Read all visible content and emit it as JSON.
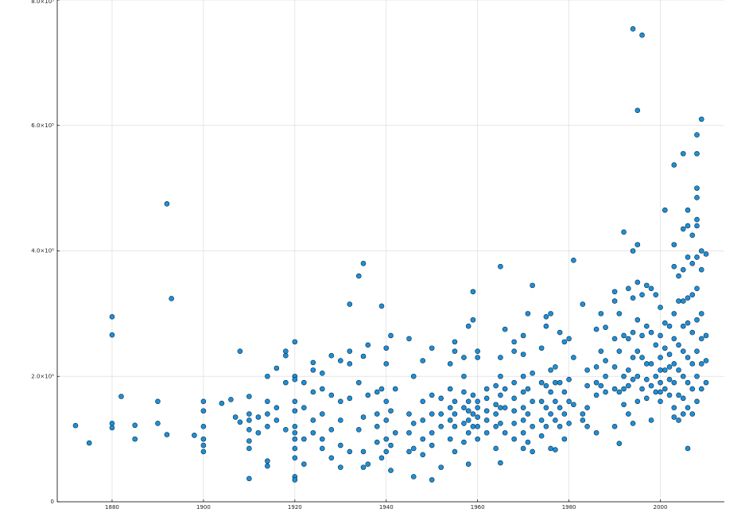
{
  "chart_data": {
    "type": "scatter",
    "x": [
      1872,
      1875,
      1880,
      1880,
      1880,
      1880,
      1882,
      1885,
      1885,
      1890,
      1890,
      1892,
      1892,
      1893,
      1898,
      1900,
      1900,
      1900,
      1900,
      1900,
      1900,
      1904,
      1906,
      1907,
      1908,
      1908,
      1910,
      1910,
      1910,
      1910,
      1910,
      1910,
      1910,
      1912,
      1912,
      1914,
      1914,
      1914,
      1914,
      1914,
      1914,
      1916,
      1916,
      1916,
      1918,
      1918,
      1918,
      1918,
      1920,
      1920,
      1920,
      1920,
      1920,
      1920,
      1920,
      1920,
      1920,
      1920,
      1920,
      1920,
      1922,
      1922,
      1922,
      1922,
      1924,
      1924,
      1924,
      1924,
      1924,
      1926,
      1926,
      1926,
      1926,
      1926,
      1928,
      1928,
      1928,
      1928,
      1930,
      1930,
      1930,
      1930,
      1930,
      1932,
      1932,
      1932,
      1932,
      1932,
      1934,
      1934,
      1934,
      1935,
      1935,
      1935,
      1935,
      1935,
      1936,
      1936,
      1936,
      1938,
      1938,
      1938,
      1938,
      1939,
      1939,
      1939,
      1940,
      1940,
      1940,
      1940,
      1940,
      1940,
      1941,
      1941,
      1941,
      1941,
      1942,
      1942,
      1945,
      1945,
      1945,
      1945,
      1946,
      1946,
      1946,
      1946,
      1948,
      1948,
      1948,
      1948,
      1948,
      1950,
      1950,
      1950,
      1950,
      1950,
      1950,
      1952,
      1952,
      1952,
      1952,
      1954,
      1954,
      1954,
      1954,
      1954,
      1955,
      1955,
      1955,
      1955,
      1955,
      1955,
      1957,
      1957,
      1957,
      1957,
      1957,
      1957,
      1958,
      1958,
      1958,
      1958,
      1958,
      1958,
      1959,
      1959,
      1959,
      1959,
      1959,
      1960,
      1960,
      1960,
      1960,
      1960,
      1960,
      1960,
      1962,
      1962,
      1962,
      1962,
      1962,
      1964,
      1964,
      1964,
      1964,
      1964,
      1965,
      1965,
      1965,
      1965,
      1965,
      1965,
      1965,
      1966,
      1966,
      1966,
      1966,
      1968,
      1968,
      1968,
      1968,
      1968,
      1968,
      1968,
      1970,
      1970,
      1970,
      1970,
      1970,
      1970,
      1970,
      1970,
      1971,
      1971,
      1971,
      1971,
      1972,
      1972,
      1972,
      1972,
      1972,
      1974,
      1974,
      1974,
      1974,
      1974,
      1975,
      1975,
      1975,
      1975,
      1975,
      1976,
      1976,
      1976,
      1976,
      1976,
      1977,
      1977,
      1977,
      1977,
      1977,
      1978,
      1978,
      1978,
      1978,
      1979,
      1979,
      1979,
      1979,
      1980,
      1980,
      1980,
      1980,
      1981,
      1981,
      1981,
      1983,
      1983,
      1983,
      1984,
      1984,
      1984,
      1984,
      1986,
      1986,
      1986,
      1986,
      1986,
      1987,
      1987,
      1987,
      1988,
      1988,
      1988,
      1988,
      1990,
      1990,
      1990,
      1990,
      1990,
      1990,
      1991,
      1991,
      1991,
      1991,
      1992,
      1992,
      1992,
      1992,
      1992,
      1993,
      1993,
      1993,
      1993,
      1993,
      1994,
      1994,
      1994,
      1994,
      1994,
      1994,
      1994,
      1995,
      1995,
      1995,
      1995,
      1995,
      1995,
      1995,
      1996,
      1996,
      1996,
      1996,
      1996,
      1997,
      1997,
      1997,
      1997,
      1997,
      1998,
      1998,
      1998,
      1998,
      1998,
      1999,
      1999,
      1999,
      1999,
      2000,
      2000,
      2000,
      2000,
      2000,
      2000,
      2000,
      2001,
      2001,
      2001,
      2001,
      2001,
      2002,
      2002,
      2002,
      2002,
      2002,
      2003,
      2003,
      2003,
      2003,
      2003,
      2003,
      2003,
      2003,
      2003,
      2004,
      2004,
      2004,
      2004,
      2004,
      2004,
      2005,
      2005,
      2005,
      2005,
      2005,
      2005,
      2005,
      2005,
      2005,
      2006,
      2006,
      2006,
      2006,
      2006,
      2006,
      2006,
      2006,
      2006,
      2007,
      2007,
      2007,
      2007,
      2007,
      2007,
      2007,
      2008,
      2008,
      2008,
      2008,
      2008,
      2008,
      2008,
      2008,
      2008,
      2008,
      2008,
      2008,
      2009,
      2009,
      2009,
      2009,
      2009,
      2009,
      2009,
      2010,
      2010,
      2010,
      2010
    ],
    "values": [
      121500,
      93700,
      295000,
      266000,
      125000,
      118000,
      168000,
      122000,
      100000,
      160000,
      125000,
      475000,
      107000,
      324000,
      106000,
      160000,
      145000,
      120000,
      100000,
      90000,
      80000,
      157000,
      163000,
      135000,
      240000,
      127000,
      168000,
      140000,
      130000,
      115000,
      97000,
      85000,
      37000,
      135000,
      110000,
      200000,
      160000,
      140000,
      120000,
      65000,
      57000,
      213000,
      150000,
      130000,
      240000,
      233000,
      190000,
      115000,
      255000,
      200000,
      195000,
      160000,
      145000,
      120000,
      110000,
      100000,
      85000,
      70000,
      40000,
      35000,
      190000,
      150000,
      100000,
      60000,
      222000,
      210000,
      175000,
      130000,
      110000,
      205000,
      180000,
      140000,
      100000,
      85000,
      233000,
      170000,
      115000,
      70000,
      225000,
      160000,
      130000,
      90000,
      55000,
      315000,
      240000,
      220000,
      165000,
      80000,
      360000,
      190000,
      115000,
      380000,
      232000,
      135000,
      80000,
      55000,
      250000,
      170000,
      60000,
      175000,
      140000,
      120000,
      95000,
      312000,
      180000,
      70000,
      245000,
      220000,
      160000,
      130000,
      100000,
      80000,
      265000,
      145000,
      90000,
      50000,
      180000,
      110000,
      260000,
      140000,
      110000,
      80000,
      200000,
      125000,
      85000,
      40000,
      225000,
      160000,
      130000,
      100000,
      75000,
      245000,
      170000,
      140000,
      110000,
      90000,
      35000,
      165000,
      140000,
      120000,
      55000,
      220000,
      180000,
      150000,
      130000,
      100000,
      255000,
      240000,
      160000,
      140000,
      120000,
      80000,
      230000,
      200000,
      175000,
      150000,
      125000,
      95000,
      280000,
      160000,
      145000,
      130000,
      110000,
      60000,
      335000,
      290000,
      170000,
      140000,
      120000,
      240000,
      230000,
      160000,
      150000,
      135000,
      120000,
      100000,
      180000,
      165000,
      145000,
      130000,
      110000,
      185000,
      155000,
      140000,
      120000,
      85000,
      375000,
      230000,
      200000,
      170000,
      150000,
      125000,
      62000,
      275000,
      180000,
      150000,
      110000,
      255000,
      240000,
      190000,
      165000,
      145000,
      125000,
      100000,
      265000,
      235000,
      200000,
      175000,
      150000,
      130000,
      110000,
      85000,
      300000,
      180000,
      140000,
      95000,
      345000,
      205000,
      160000,
      120000,
      80000,
      245000,
      190000,
      160000,
      130000,
      105000,
      295000,
      280000,
      185000,
      150000,
      120000,
      300000,
      210000,
      175000,
      140000,
      85000,
      215000,
      190000,
      160000,
      130000,
      83000,
      270000,
      190000,
      150000,
      120000,
      255000,
      175000,
      140000,
      100000,
      260000,
      195000,
      160000,
      125000,
      385000,
      230000,
      155000,
      315000,
      140000,
      130000,
      210000,
      185000,
      150000,
      120000,
      275000,
      215000,
      190000,
      170000,
      110000,
      300000,
      240000,
      185000,
      278000,
      225000,
      200000,
      175000,
      335000,
      320000,
      260000,
      215000,
      180000,
      120000,
      300000,
      240000,
      175000,
      93000,
      430000,
      265000,
      200000,
      180000,
      155000,
      340000,
      260000,
      210000,
      185000,
      140000,
      754000,
      400000,
      325000,
      270000,
      230000,
      195000,
      125000,
      624000,
      410000,
      350000,
      290000,
      240000,
      200000,
      160000,
      744000,
      330000,
      265000,
      230000,
      180000,
      345000,
      280000,
      220000,
      195000,
      165000,
      340000,
      270000,
      220000,
      185000,
      130000,
      330000,
      250000,
      200000,
      175000,
      310000,
      265000,
      230000,
      210000,
      190000,
      175000,
      160000,
      465000,
      285000,
      245000,
      210000,
      180000,
      280000,
      235000,
      215000,
      195000,
      170000,
      537000,
      410000,
      375000,
      300000,
      260000,
      220000,
      190000,
      150000,
      135000,
      360000,
      320000,
      250000,
      210000,
      170000,
      130000,
      555000,
      435000,
      370000,
      320000,
      280000,
      240000,
      200000,
      165000,
      140000,
      465000,
      440000,
      390000,
      325000,
      285000,
      230000,
      190000,
      150000,
      85000,
      425000,
      380000,
      330000,
      270000,
      220000,
      180000,
      140000,
      585000,
      555000,
      500000,
      485000,
      450000,
      440000,
      390000,
      340000,
      290000,
      240000,
      200000,
      160000,
      610000,
      400000,
      370000,
      300000,
      260000,
      220000,
      180000,
      395000,
      265000,
      225000,
      190000
    ],
    "color": "#1e8fd8",
    "xlim": [
      1868,
      2014
    ],
    "xticks": [
      1880,
      1900,
      1920,
      1940,
      1960,
      1980,
      2000
    ],
    "ylim": [
      0,
      800000
    ],
    "yticks": [
      0,
      {
        "value": 200000,
        "label": "2.0×10⁵"
      },
      {
        "value": 400000,
        "label": "4.0×10⁵"
      },
      {
        "value": 600000,
        "label": "6.0×10⁵"
      },
      {
        "value": 800000,
        "label": "8.0×10⁵"
      }
    ],
    "grid": true
  }
}
